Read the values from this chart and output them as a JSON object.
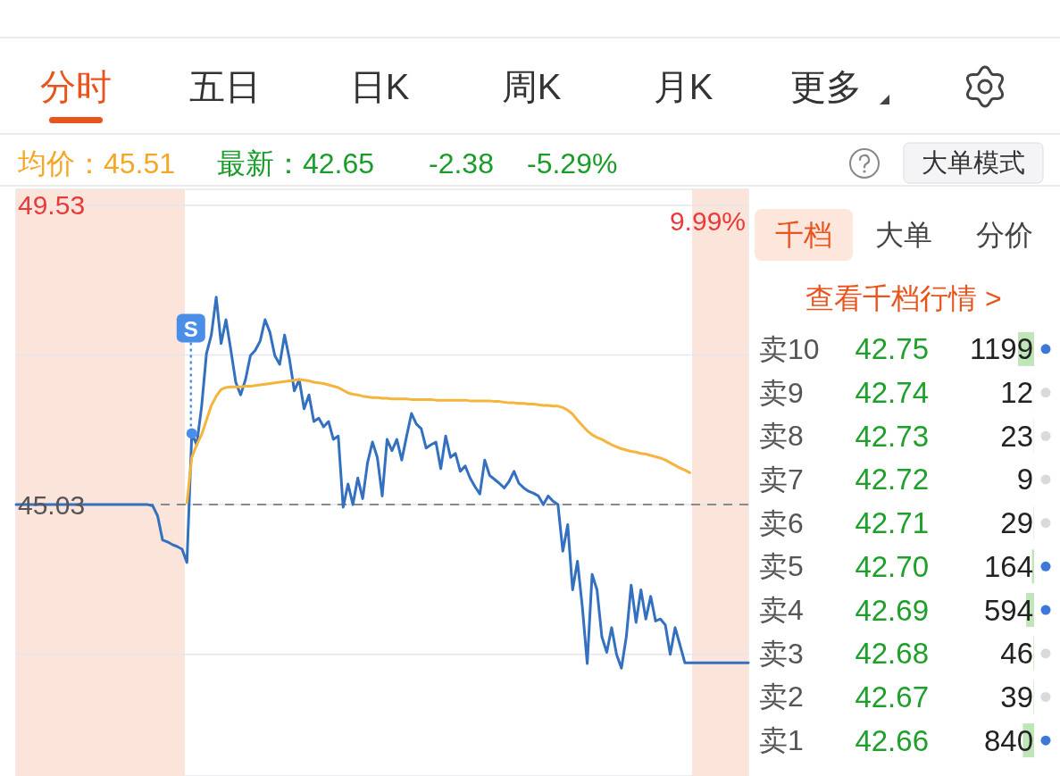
{
  "chart_data": [
    {
      "type": "other",
      "annotations": [
        "分时",
        "五日",
        "日K",
        "周K",
        "月K",
        "更多",
        "均价：45.51",
        "最新：42.65",
        "-2.38",
        "-5.29%",
        "大单模式"
      ]
    },
    {
      "type": "line",
      "categories": [
        null,
        null,
        null,
        null,
        null,
        null,
        null,
        null,
        null,
        null,
        null,
        null,
        null,
        null,
        null,
        null,
        null,
        null,
        null,
        null,
        null,
        null,
        null,
        null,
        null,
        null,
        null,
        null,
        null,
        null,
        null,
        null,
        null,
        null,
        null,
        null,
        null,
        null,
        null,
        null,
        null,
        null,
        null,
        null,
        null,
        null,
        null,
        null,
        null,
        null,
        null,
        null,
        null,
        null,
        null,
        null,
        null,
        null,
        null,
        null,
        null,
        null,
        null,
        null,
        null,
        null,
        null,
        null,
        null,
        null,
        null,
        null,
        null,
        null,
        null,
        null,
        null,
        null,
        null,
        null,
        null,
        null,
        null,
        null,
        null,
        null,
        null,
        null,
        null,
        null,
        null,
        null,
        null,
        null,
        null,
        null,
        null,
        null,
        null,
        null,
        null,
        null,
        null,
        null,
        null,
        null,
        null,
        null,
        null,
        null,
        null,
        null,
        null,
        null,
        null,
        null,
        null,
        null,
        null,
        null,
        null,
        null,
        null,
        null,
        null,
        null,
        null,
        null,
        null,
        null,
        null,
        null,
        null,
        null,
        null,
        null,
        null,
        null,
        null,
        null,
        null,
        null,
        null,
        null,
        null,
        null,
        null,
        null,
        null,
        null,
        null
      ],
      "ylim": [
        40.95,
        49.77
      ],
      "yticks": [
        49.53,
        {
          "value": 47.28,
          "label": null
        },
        45.03,
        {
          "value": 42.78,
          "label": null
        }
      ],
      "tick_labels": "y",
      "grid": "y",
      "ref_lines": [
        {
          "axis": "y",
          "value": 45.03,
          "color": "#8a8a8a",
          "line_style": "dashed"
        }
      ],
      "annotations": [
        {
          "text": "S",
          "y": 46.1
        },
        "9.99%"
      ],
      "series": [
        {
          "color": "#3470c0",
          "values": [
            45.03,
            45.03,
            45.03,
            45.03,
            45.03,
            45.03,
            45.03,
            45.03,
            45.03,
            45.03,
            45.03,
            45.03,
            45.03,
            45.03,
            45.03,
            45.03,
            45.03,
            45.03,
            45.03,
            45.03,
            45.03,
            45.03,
            45.03,
            45.03,
            45.03,
            45.03,
            45.03,
            45.03,
            45.01,
            44.86,
            44.5,
            44.47,
            44.43,
            44.4,
            44.36,
            44.16,
            46.1,
            45.93,
            46.5,
            47.3,
            47.58,
            48.15,
            47.45,
            47.81,
            47.35,
            46.87,
            46.68,
            46.91,
            47.27,
            47.35,
            47.49,
            47.81,
            47.62,
            47.27,
            47.14,
            47.58,
            47.22,
            46.74,
            46.91,
            46.47,
            46.68,
            46.28,
            46.33,
            46.2,
            46.28,
            46.01,
            46.06,
            44.99,
            45.34,
            45.03,
            45.43,
            45.12,
            45.66,
            45.97,
            45.74,
            45.16,
            46.01,
            45.84,
            46.01,
            45.7,
            46.06,
            46.4,
            46.24,
            46.17,
            45.88,
            45.93,
            45.97,
            45.57,
            46.06,
            45.74,
            45.8,
            45.53,
            45.61,
            45.43,
            45.3,
            45.19,
            45.7,
            45.47,
            45.41,
            45.35,
            45.28,
            45.38,
            45.53,
            45.35,
            45.28,
            45.23,
            45.2,
            45.16,
            45.03,
            45.16,
            45.08,
            45.03,
            44.33,
            44.73,
            43.75,
            44.18,
            43.49,
            42.64,
            43.98,
            43.75,
            43.04,
            42.81,
            43.18,
            42.78,
            42.57,
            43.04,
            43.82,
            43.26,
            43.75,
            43.31,
            43.65,
            43.28,
            43.31,
            43.22,
            42.78,
            43.18,
            42.92,
            42.65,
            42.65,
            42.65,
            42.65,
            42.65,
            42.65,
            42.65,
            42.65,
            42.65,
            42.65,
            42.65,
            42.65,
            42.65,
            42.65
          ]
        },
        {
          "color": "#f5b43c",
          "values": [
            null,
            null,
            null,
            null,
            null,
            null,
            null,
            null,
            null,
            null,
            null,
            null,
            null,
            null,
            null,
            null,
            null,
            null,
            null,
            null,
            null,
            null,
            null,
            null,
            null,
            null,
            null,
            null,
            null,
            null,
            null,
            null,
            null,
            null,
            null,
            45.06,
            45.74,
            45.93,
            46.08,
            46.3,
            46.52,
            46.66,
            46.76,
            46.79,
            46.8,
            46.8,
            46.8,
            46.81,
            46.81,
            46.82,
            46.83,
            46.84,
            46.85,
            46.86,
            46.87,
            46.88,
            46.89,
            46.9,
            46.91,
            46.9,
            46.89,
            46.87,
            46.86,
            46.85,
            46.83,
            46.81,
            46.79,
            46.75,
            46.71,
            46.69,
            46.68,
            46.66,
            46.65,
            46.64,
            46.64,
            46.63,
            46.63,
            46.62,
            46.62,
            46.62,
            46.62,
            46.61,
            46.61,
            46.61,
            46.61,
            46.61,
            46.6,
            46.6,
            46.6,
            46.6,
            46.6,
            46.6,
            46.6,
            46.59,
            46.59,
            46.59,
            46.59,
            46.59,
            46.58,
            46.58,
            46.57,
            46.56,
            46.56,
            46.55,
            46.55,
            46.54,
            46.54,
            46.53,
            46.52,
            46.52,
            46.51,
            46.51,
            46.49,
            46.45,
            46.39,
            46.3,
            46.22,
            46.14,
            46.08,
            46.04,
            46.01,
            45.97,
            45.93,
            45.9,
            45.87,
            45.85,
            45.83,
            45.82,
            45.8,
            45.79,
            45.77,
            45.75,
            45.73,
            45.7,
            45.66,
            45.62,
            45.58,
            45.55,
            45.51,
            null,
            null,
            null,
            null,
            null,
            null,
            null,
            null,
            null,
            null,
            null,
            null
          ]
        }
      ]
    },
    {
      "type": "other",
      "annotations": [
        "千档",
        "大单",
        "分价",
        "查看千档行情 >"
      ]
    },
    {
      "type": "bar",
      "orientation": "horizontal",
      "tick_labels": "y",
      "data_labels": true,
      "xlim": [
        1199,
        0
      ],
      "categories": [
        "卖10",
        "卖9",
        "卖8",
        "卖7",
        "卖6",
        "卖5",
        "卖4",
        "卖3",
        "卖2",
        "卖1"
      ],
      "y2_categories": [
        "42.75",
        "42.74",
        "42.73",
        "42.72",
        "42.71",
        "42.70",
        "42.69",
        "42.68",
        "42.67",
        "42.66"
      ],
      "values": [
        1199,
        12,
        23,
        9,
        29,
        164,
        594,
        46,
        39,
        840
      ],
      "color": "#bfe5b9"
    }
  ]
}
